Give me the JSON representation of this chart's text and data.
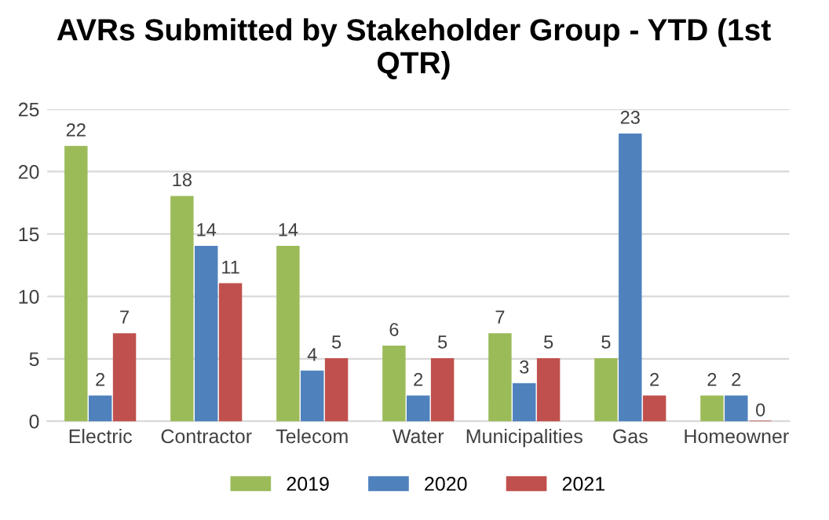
{
  "chart_data": {
    "type": "bar",
    "title": "AVRs Submitted by Stakeholder Group - YTD (1st QTR)",
    "categories": [
      "Electric",
      "Contractor",
      "Telecom",
      "Water",
      "Municipalities",
      "Gas",
      "Homeowner"
    ],
    "series": [
      {
        "name": "2019",
        "color": "#9bbb59",
        "values": [
          22,
          18,
          14,
          6,
          7,
          5,
          2
        ]
      },
      {
        "name": "2020",
        "color": "#4f81bd",
        "values": [
          2,
          14,
          4,
          2,
          3,
          23,
          2
        ]
      },
      {
        "name": "2021",
        "color": "#c0504d",
        "values": [
          7,
          11,
          5,
          5,
          5,
          2,
          0
        ]
      }
    ],
    "ylim": [
      0,
      25
    ],
    "yticks": [
      0,
      5,
      10,
      15,
      20,
      25
    ],
    "grid": "y",
    "legend": "bottom",
    "data_labels": true
  }
}
